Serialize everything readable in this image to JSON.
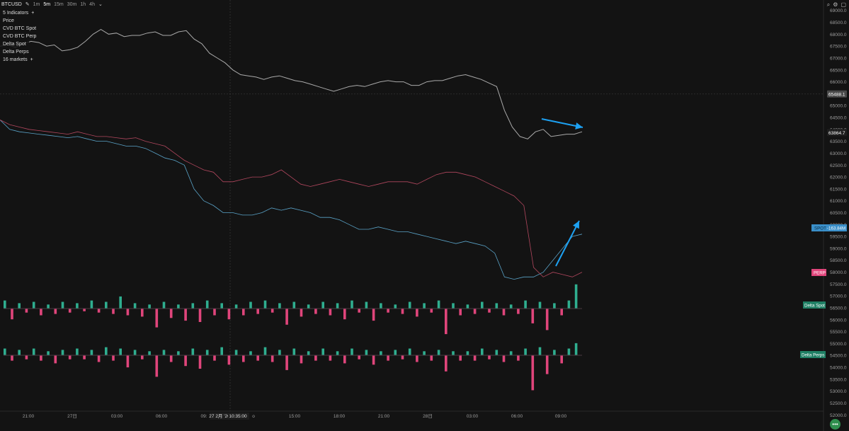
{
  "toolbar": {
    "symbol": "BTCUSD",
    "timeframes": [
      "1m",
      "5m",
      "15m",
      "30m",
      "1h",
      "4h"
    ],
    "active_timeframe": "5m"
  },
  "legend": {
    "indicators_label": "5 Indicators",
    "items": [
      "Price",
      "CVD BTC Spot",
      "CVD BTC Perp",
      "Delta Spot",
      "Delta Perps"
    ],
    "markets_label": "16 markets"
  },
  "colors": {
    "background": "#131313",
    "price_line": "#a9a9a9",
    "spot_cvd": "#5aa3c8",
    "perp_cvd": "#b2475e",
    "delta_up": "#2fae8f",
    "delta_down": "#e0457b",
    "annotation_arrow": "#1da1f2"
  },
  "chart_data": {
    "type": "line",
    "y_axis": {
      "ticks": [
        69000,
        68500,
        68000,
        67500,
        67000,
        66500,
        66000,
        65500,
        65000,
        64500,
        64000,
        63500,
        63000,
        62500,
        62000,
        61500,
        61000,
        60500,
        60000,
        59500,
        59000,
        58500,
        58000,
        57500,
        57000,
        56500,
        56000,
        55500,
        55000,
        54500,
        54000,
        53500,
        53000,
        52500,
        52000
      ],
      "tick_labels": [
        "69000.0",
        "68500.0",
        "68000.0",
        "67500.0",
        "67000.0",
        "66500.0",
        "66000.0",
        "65500.0",
        "65000.0",
        "64500.0",
        "64000.0",
        "63500.0",
        "63000.0",
        "62500.0",
        "62000.0",
        "61500.0",
        "61000.0",
        "60500.0",
        "60000.0",
        "59500.0",
        "59000.0",
        "58500.0",
        "58000.0",
        "57500.0",
        "57000.0",
        "56500.0",
        "56000.0",
        "55500.0",
        "55000.0",
        "54500.0",
        "54000.0",
        "53500.0",
        "53000.0",
        "52500.0",
        "52000.0"
      ],
      "range": [
        51800,
        69200
      ]
    },
    "x_axis": {
      "tick_labels": [
        "21:00",
        "27日",
        "03:00",
        "06:00",
        "09:",
        "27 2月 '26",
        "10:35:00",
        "o",
        "15:00",
        "18:00",
        "21:00",
        "28日",
        "03:00",
        "06:00",
        "09:00"
      ]
    },
    "crosshair": {
      "price_label": "65488.1",
      "time_label": "27 2月 '26",
      "time_value": "10:35:00"
    },
    "price_badge": "63864.7",
    "badges": {
      "spot": "SPOT",
      "spot_value": "-163.84M",
      "perp": "PERP",
      "delta_spot": "Delta Spot",
      "delta_perps": "Delta Perps"
    },
    "series": [
      {
        "name": "Price",
        "x": [
          0,
          4,
          8,
          12,
          16,
          20,
          24,
          28,
          32,
          36,
          40,
          44,
          48,
          52,
          56,
          60,
          64,
          68,
          72,
          76,
          80,
          84,
          88,
          92,
          96,
          100,
          104,
          108,
          112,
          116,
          120,
          124,
          128,
          132,
          136,
          140,
          144,
          148,
          152,
          156,
          160,
          164,
          168,
          172,
          176,
          180,
          184,
          188,
          192,
          196,
          200,
          204,
          208,
          212,
          216,
          220,
          224,
          228,
          232,
          236,
          240,
          244,
          248,
          252,
          256,
          260,
          264,
          268,
          272,
          276,
          280,
          284,
          288,
          292,
          296,
          300
        ],
        "values": [
          67500,
          67550,
          67450,
          67600,
          67700,
          67650,
          67500,
          67550,
          67300,
          67350,
          67450,
          67700,
          68000,
          68200,
          68000,
          68050,
          67900,
          67950,
          67950,
          68050,
          68100,
          67950,
          67950,
          68100,
          68150,
          67800,
          67600,
          67200,
          67000,
          66800,
          66500,
          66300,
          66250,
          66200,
          66100,
          66200,
          66250,
          66150,
          66050,
          66000,
          65900,
          65800,
          65700,
          65600,
          65700,
          65800,
          65850,
          65800,
          65900,
          66000,
          66050,
          66000,
          66000,
          65850,
          65850,
          66000,
          66050,
          66050,
          66150,
          66250,
          66300,
          66200,
          66100,
          65950,
          65800,
          64800,
          64100,
          63700,
          63600,
          63900,
          64000,
          63700,
          63750,
          63800,
          63800,
          63900
        ]
      },
      {
        "name": "CVD BTC Spot",
        "x": [
          0,
          5,
          10,
          15,
          20,
          25,
          30,
          35,
          40,
          45,
          50,
          55,
          60,
          65,
          70,
          75,
          80,
          85,
          90,
          95,
          100,
          105,
          110,
          115,
          120,
          125,
          130,
          135,
          140,
          145,
          150,
          155,
          160,
          165,
          170,
          175,
          180,
          185,
          190,
          195,
          200,
          205,
          210,
          215,
          220,
          225,
          230,
          235,
          240,
          245,
          250,
          255,
          260,
          265,
          270,
          275,
          280,
          285,
          290,
          295,
          300
        ],
        "values": [
          64400,
          64000,
          63900,
          63850,
          63800,
          63750,
          63700,
          63650,
          63700,
          63600,
          63500,
          63500,
          63400,
          63300,
          63300,
          63200,
          63000,
          62800,
          62700,
          62500,
          61500,
          61000,
          60800,
          60500,
          60500,
          60400,
          60400,
          60500,
          60700,
          60600,
          60700,
          60600,
          60500,
          60300,
          60300,
          60200,
          60000,
          59800,
          59800,
          59900,
          59800,
          59700,
          59700,
          59600,
          59500,
          59400,
          59300,
          59200,
          59300,
          59200,
          59100,
          58800,
          57800,
          57700,
          57800,
          57800,
          58000,
          58500,
          59000,
          59500,
          59600
        ]
      },
      {
        "name": "CVD BTC Perp",
        "x": [
          0,
          5,
          10,
          15,
          20,
          25,
          30,
          35,
          40,
          45,
          50,
          55,
          60,
          65,
          70,
          75,
          80,
          85,
          90,
          95,
          100,
          105,
          110,
          115,
          120,
          125,
          130,
          135,
          140,
          145,
          150,
          155,
          160,
          165,
          170,
          175,
          180,
          185,
          190,
          195,
          200,
          205,
          210,
          215,
          220,
          225,
          230,
          235,
          240,
          245,
          250,
          255,
          260,
          265,
          270,
          275,
          280,
          285,
          290,
          295,
          300
        ],
        "values": [
          64400,
          64200,
          64100,
          64000,
          63950,
          63900,
          63850,
          63800,
          63900,
          63800,
          63700,
          63700,
          63650,
          63600,
          63650,
          63500,
          63400,
          63300,
          63000,
          62700,
          62500,
          62300,
          62200,
          61800,
          61800,
          61900,
          62000,
          62000,
          62100,
          62300,
          62000,
          61700,
          61600,
          61700,
          61800,
          61900,
          61800,
          61700,
          61600,
          61700,
          61800,
          61800,
          61800,
          61700,
          61900,
          62100,
          62200,
          62200,
          62100,
          62000,
          61800,
          61600,
          61400,
          61200,
          60800,
          58200,
          57800,
          58000,
          57900,
          57800,
          58000
        ]
      }
    ],
    "delta_spot_values": [
      0.6,
      -0.8,
      0.4,
      -0.3,
      0.5,
      -0.5,
      0.3,
      -0.4,
      0.5,
      -0.3,
      0.4,
      -0.2,
      0.6,
      -0.3,
      0.5,
      -0.4,
      0.9,
      -0.5,
      0.4,
      -0.6,
      0.3,
      -1.4,
      0.5,
      -0.7,
      0.3,
      -0.9,
      0.4,
      -1.0,
      0.6,
      -0.5,
      0.4,
      -0.8,
      0.3,
      -0.5,
      0.5,
      -0.4,
      0.6,
      -0.3,
      0.4,
      -1.2,
      0.5,
      -0.6,
      0.3,
      -0.4,
      0.5,
      -0.5,
      0.4,
      -0.8,
      0.6,
      -0.3,
      0.5,
      -0.9,
      0.4,
      -0.3,
      0.3,
      -0.4,
      0.5,
      -0.6,
      0.4,
      -0.3,
      0.6,
      -1.9,
      0.4,
      -0.5,
      0.3,
      -0.4,
      0.5,
      -0.3,
      0.4,
      -0.5,
      0.3,
      -0.4,
      0.6,
      -1.1,
      0.5,
      -1.6,
      0.4,
      -0.5,
      0.6,
      1.8
    ],
    "delta_perps_values": [
      0.5,
      -0.4,
      0.4,
      -0.3,
      0.5,
      -0.4,
      0.3,
      -0.6,
      0.4,
      -0.3,
      0.5,
      -0.3,
      0.4,
      -0.5,
      0.6,
      -0.4,
      0.5,
      -0.9,
      0.4,
      -0.3,
      0.3,
      -1.6,
      0.4,
      -0.5,
      0.3,
      -0.8,
      0.5,
      -1.0,
      0.4,
      -0.4,
      0.6,
      -0.7,
      0.4,
      -0.5,
      0.3,
      -0.4,
      0.6,
      -0.5,
      0.4,
      -1.1,
      0.5,
      -0.6,
      0.3,
      -0.4,
      0.5,
      -0.4,
      0.3,
      -0.6,
      0.5,
      -0.3,
      0.4,
      -0.7,
      0.3,
      -0.4,
      0.4,
      -0.3,
      0.5,
      -0.5,
      0.3,
      -0.4,
      0.4,
      -1.2,
      0.3,
      -0.4,
      0.3,
      -0.4,
      0.5,
      -0.3,
      0.4,
      -0.5,
      0.3,
      -0.4,
      0.5,
      -2.6,
      0.6,
      -1.4,
      0.4,
      -0.6,
      0.5,
      0.9
    ]
  }
}
